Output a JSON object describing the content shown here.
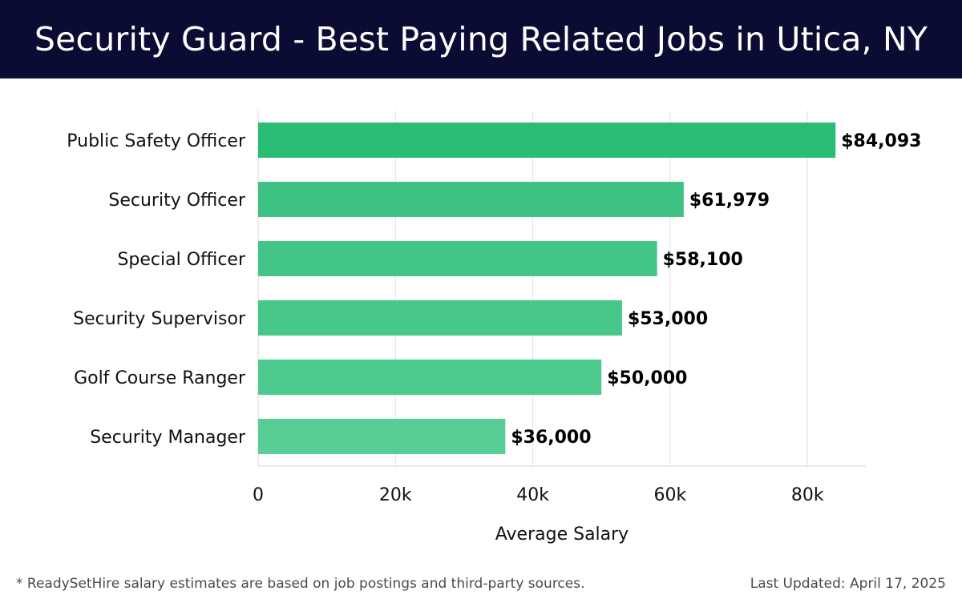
{
  "header": {
    "title": "Security Guard - Best Paying Related Jobs in Utica, NY"
  },
  "chart_data": {
    "type": "bar",
    "orientation": "horizontal",
    "title": "Security Guard - Best Paying Related Jobs in Utica, NY",
    "xlabel": "Average Salary",
    "ylabel": "",
    "categories": [
      "Public Safety Officer",
      "Security Officer",
      "Special Officer",
      "Security Supervisor",
      "Golf Course Ranger",
      "Security Manager"
    ],
    "values": [
      84093,
      61979,
      58100,
      53000,
      50000,
      36000
    ],
    "value_labels": [
      "$84,093",
      "$61,979",
      "$58,100",
      "$53,000",
      "$50,000",
      "$36,000"
    ],
    "xticks": [
      0,
      20000,
      40000,
      60000,
      80000
    ],
    "xtick_labels": [
      "0",
      "20k",
      "40k",
      "60k",
      "80k"
    ],
    "xlim": [
      0,
      88500
    ],
    "grid": "vertical",
    "bar_colors": [
      "#2abd76",
      "#3ec384",
      "#42c587",
      "#47c78a",
      "#4cc98d",
      "#58cd96"
    ]
  },
  "footer": {
    "note": "* ReadySetHire salary estimates are based on job postings and third-party sources.",
    "updated": "Last Updated: April 17, 2025"
  }
}
